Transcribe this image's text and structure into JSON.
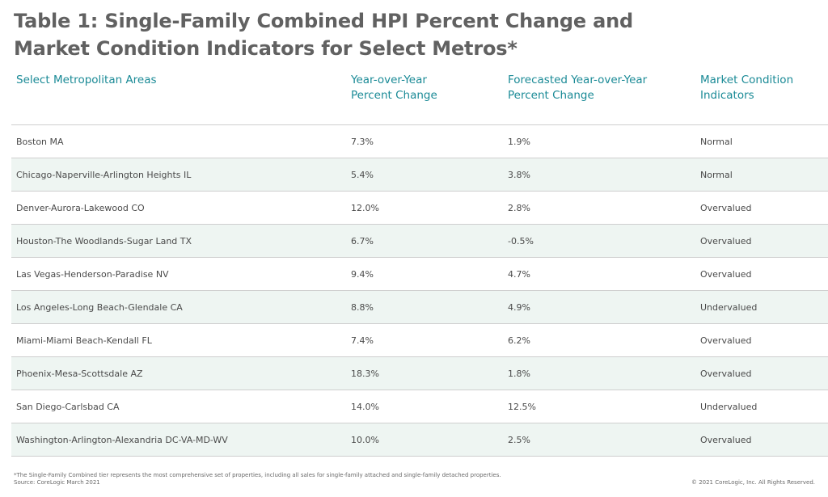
{
  "title_line1": "Table 1: Single-Family Combined HPI Percent Change and",
  "title_line2": "Market Condition Indicators for Select Metros*",
  "headers": {
    "metro": "Select Metropolitan Areas",
    "yoy_line1": "Year-over-Year",
    "yoy_line2": "Percent Change",
    "forecast_line1": "Forecasted Year-over-Year",
    "forecast_line2": "Percent Change",
    "mci_line1": "Market Condition",
    "mci_line2": "Indicators"
  },
  "rows": [
    {
      "metro": "Boston MA",
      "yoy": "7.3%",
      "forecast": "1.9%",
      "indicator": "Normal"
    },
    {
      "metro": "Chicago-Naperville-Arlington Heights IL",
      "yoy": "5.4%",
      "forecast": "3.8%",
      "indicator": "Normal"
    },
    {
      "metro": "Denver-Aurora-Lakewood CO",
      "yoy": "12.0%",
      "forecast": "2.8%",
      "indicator": "Overvalued"
    },
    {
      "metro": "Houston-The Woodlands-Sugar Land TX",
      "yoy": "6.7%",
      "forecast": "-0.5%",
      "indicator": "Overvalued"
    },
    {
      "metro": "Las Vegas-Henderson-Paradise NV",
      "yoy": "9.4%",
      "forecast": "4.7%",
      "indicator": "Overvalued"
    },
    {
      "metro": "Los Angeles-Long Beach-Glendale CA",
      "yoy": "8.8%",
      "forecast": "4.9%",
      "indicator": "Undervalued"
    },
    {
      "metro": "Miami-Miami Beach-Kendall FL",
      "yoy": "7.4%",
      "forecast": "6.2%",
      "indicator": "Overvalued"
    },
    {
      "metro": "Phoenix-Mesa-Scottsdale AZ",
      "yoy": "18.3%",
      "forecast": "1.8%",
      "indicator": "Overvalued"
    },
    {
      "metro": "San Diego-Carlsbad CA",
      "yoy": "14.0%",
      "forecast": "12.5%",
      "indicator": "Undervalued"
    },
    {
      "metro": "Washington-Arlington-Alexandria DC-VA-MD-WV",
      "yoy": "10.0%",
      "forecast": "2.5%",
      "indicator": "Overvalued"
    }
  ],
  "footnote_line1": "*The Single-Family Combined tier represents the most comprehensive set of properties, including all sales for single-family attached and single-family detached properties.",
  "footnote_line2": "Source: CoreLogic March 2021",
  "copyright": "© 2021 CoreLogic, Inc. All Rights Reserved.",
  "colors": {
    "header_text": "#1a8a96",
    "title_text": "#616161",
    "stripe": "#eef5f2"
  }
}
